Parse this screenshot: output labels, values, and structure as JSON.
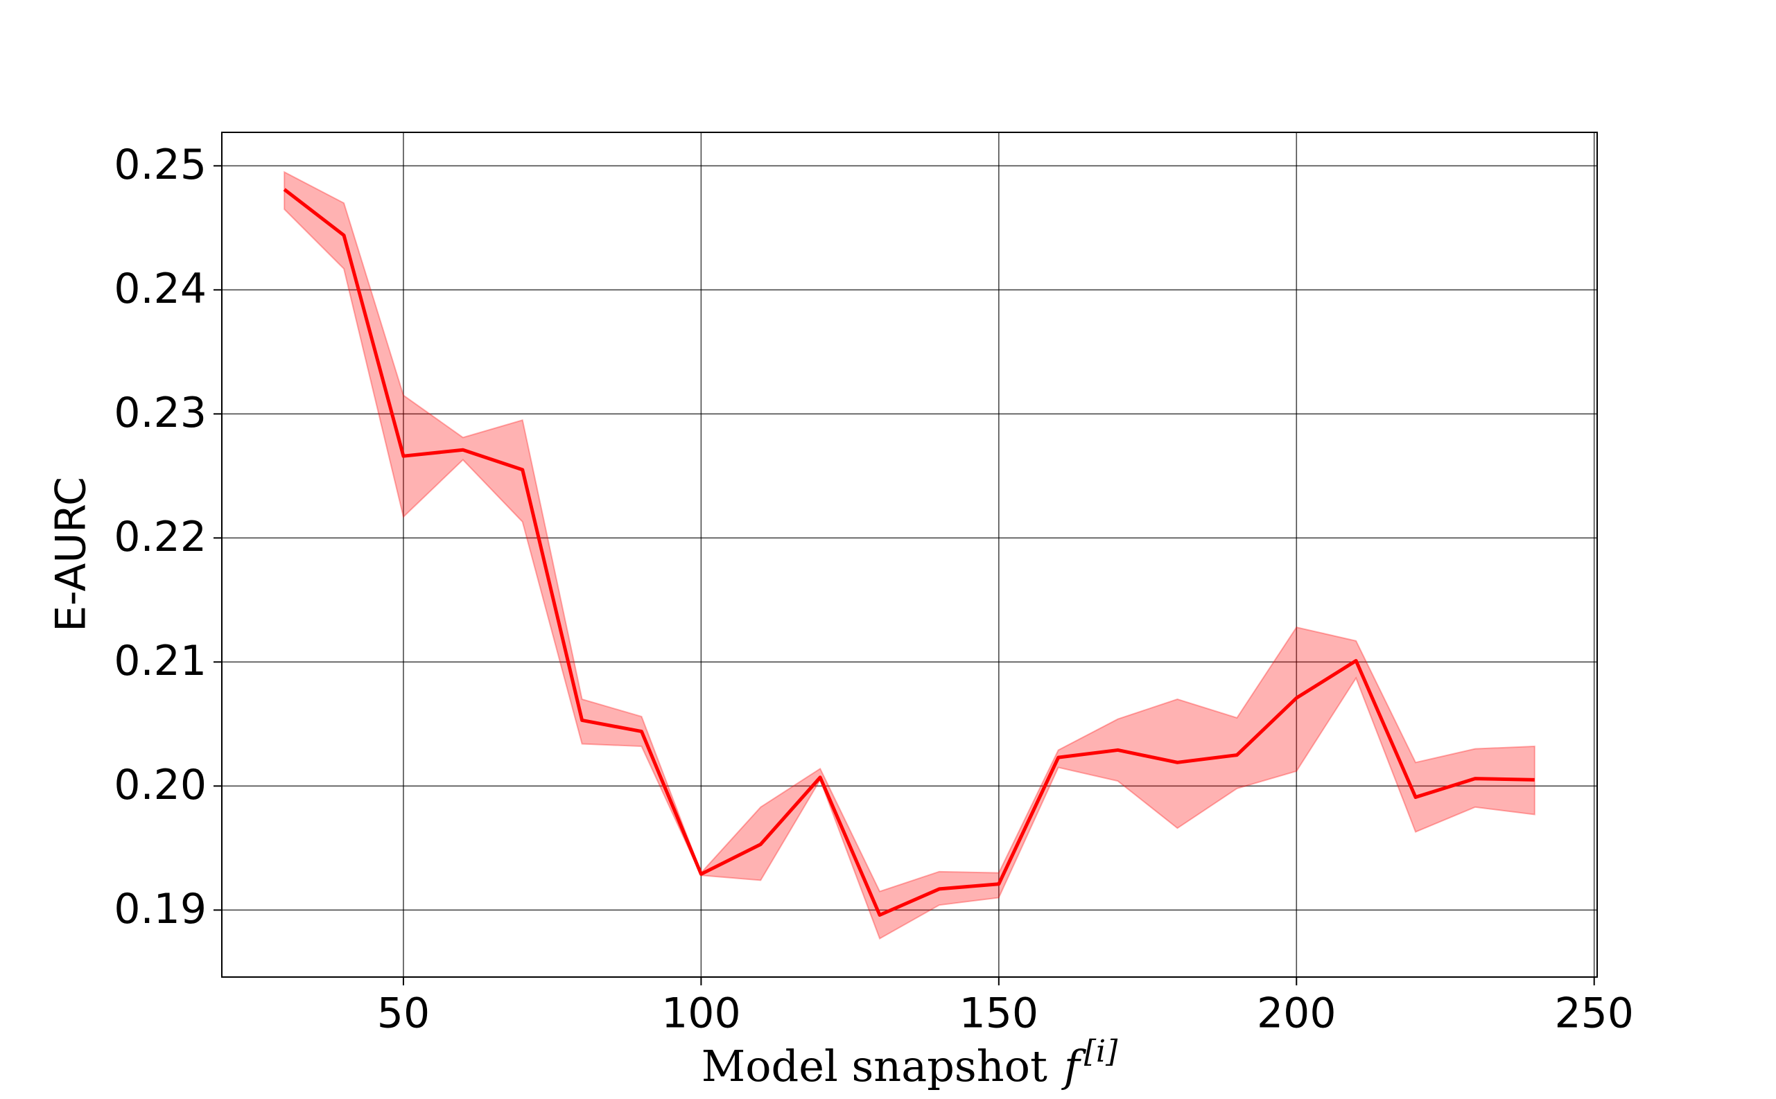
{
  "chart_data": {
    "type": "line",
    "ylabel": "E-AURC",
    "xlabel": {
      "text": "Model snapshot",
      "symbol": "f",
      "superscript": "[i]"
    },
    "x": [
      30,
      40,
      50,
      60,
      70,
      80,
      90,
      100,
      110,
      120,
      130,
      140,
      150,
      160,
      170,
      180,
      190,
      200,
      210,
      220,
      230,
      240
    ],
    "series": [
      {
        "color": "#ff0000",
        "band_color": "#ff0000",
        "band_opacity": 0.3,
        "values": [
          0.2481,
          0.2444,
          0.2266,
          0.2271,
          0.2255,
          0.2053,
          0.2044,
          0.1929,
          0.1953,
          0.2007,
          0.1896,
          0.1917,
          0.1921,
          0.2023,
          0.2029,
          0.2019,
          0.2025,
          0.2071,
          0.2101,
          0.1991,
          0.2006,
          0.2005
        ],
        "lower": [
          0.2465,
          0.2417,
          0.2217,
          0.2263,
          0.2213,
          0.2034,
          0.2032,
          0.1928,
          0.1924,
          0.2005,
          0.1877,
          0.1904,
          0.191,
          0.2015,
          0.2004,
          0.1966,
          0.1998,
          0.2012,
          0.2087,
          0.1963,
          0.1983,
          0.1977
        ],
        "upper": [
          0.2495,
          0.247,
          0.2315,
          0.2281,
          0.2295,
          0.207,
          0.2056,
          0.193,
          0.1983,
          0.2014,
          0.1915,
          0.1931,
          0.193,
          0.2029,
          0.2054,
          0.207,
          0.2055,
          0.2128,
          0.2117,
          0.2019,
          0.203,
          0.2032
        ]
      }
    ],
    "xlim": [
      19.5,
      250.5
    ],
    "xticks": [
      50,
      100,
      150,
      200,
      250
    ],
    "ylim": [
      0.1846,
      0.2527
    ],
    "yticks": [
      0.19,
      {
        "value": 0.2,
        "label": "0.20"
      },
      0.21,
      0.22,
      0.23,
      0.24,
      0.25
    ],
    "grid": true
  }
}
